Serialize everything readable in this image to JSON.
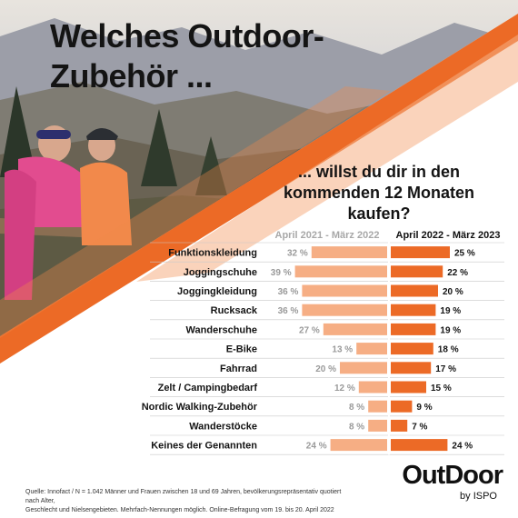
{
  "title_line1": "Welches Outdoor-",
  "title_line2": "Zubehör ...",
  "subtitle_lines": [
    "... willst du dir in den",
    "kommenden 12 Monaten",
    "kaufen?"
  ],
  "colors": {
    "accent": "#ec6a26",
    "light": "#f6ae84",
    "title": "#141414"
  },
  "chart_data": {
    "type": "bar",
    "categories": [
      "Funktionskleidung",
      "Joggingschuhe",
      "Joggingkleidung",
      "Rucksack",
      "Wanderschuhe",
      "E-Bike",
      "Fahrrad",
      "Zelt / Campingbedarf",
      "Nordic Walking-Zubehör",
      "Wanderstöcke",
      "Keines der Genannten"
    ],
    "series": [
      {
        "name": "April 2021 - März 2022",
        "values": [
          32,
          39,
          36,
          36,
          27,
          13,
          20,
          12,
          8,
          8,
          24
        ],
        "color": "#f6ae84"
      },
      {
        "name": "April 2022 - März 2023",
        "values": [
          25,
          22,
          20,
          19,
          19,
          18,
          17,
          15,
          9,
          7,
          24
        ],
        "color": "#ec6a26"
      }
    ],
    "unit": "%"
  },
  "footer": {
    "source_line1": "Quelle: Innofact  /  N = 1.042 Männer und Frauen zwischen 18 und 69 Jahren, bevölkerungsrepräsentativ quotiert nach Alter,",
    "source_line2": "Geschlecht und Nielsengebieten. Mehrfach-Nennungen möglich. Online-Befragung vom 19. bis 20. April 2022"
  },
  "logo": {
    "word": "OutDoor",
    "sub": "by ISPO"
  }
}
